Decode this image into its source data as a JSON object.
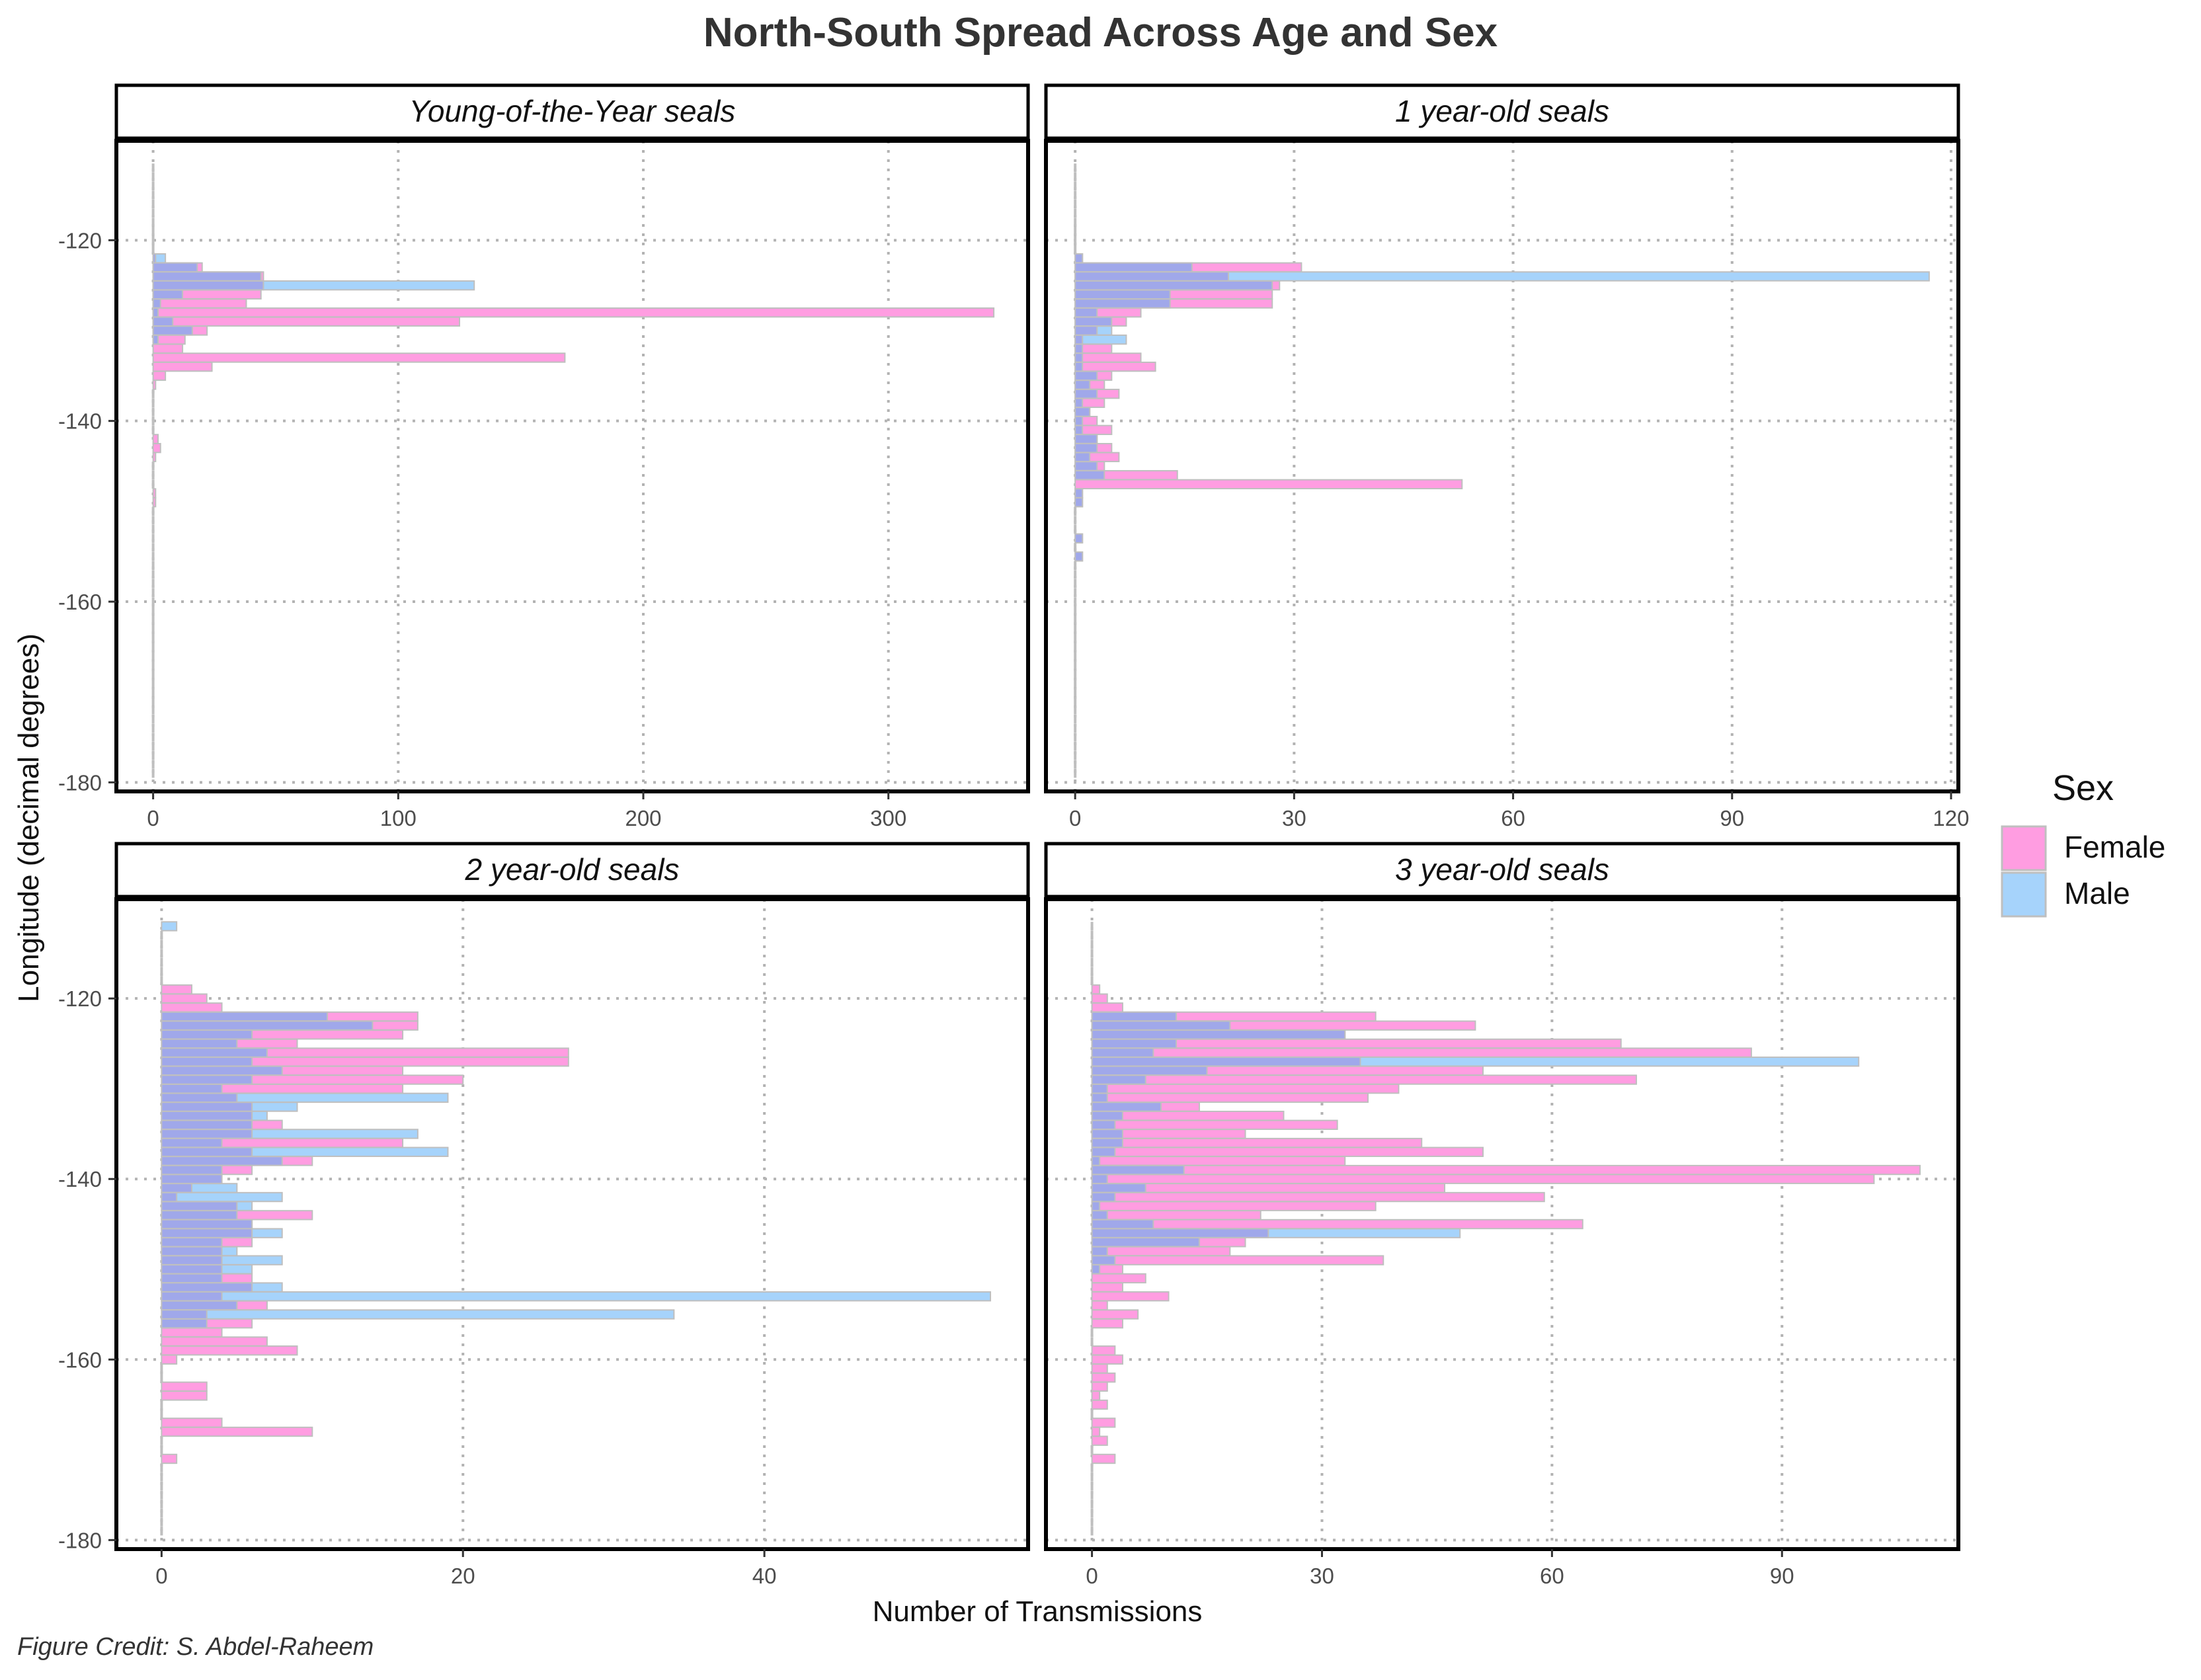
{
  "title": "North-South Spread Across Age and Sex",
  "credit": "Figure Credit: S. Abdel-Raheem",
  "colors": {
    "female": "#ff9de1",
    "male": "#a6d3fb",
    "overlap": "#a0a8ea",
    "edge": "#bfbfbf",
    "grid": "#b3b3b3"
  },
  "chart_data": {
    "type": "bar",
    "orientation": "horizontal",
    "xlabel": "Number of Transmissions",
    "ylabel": "Longitude (decimal degrees)",
    "ylim": [
      -181,
      -109
    ],
    "y_ticks": [
      -120,
      -140,
      -160,
      -180
    ],
    "grid": true,
    "legend": {
      "title": "Sex",
      "position": "right",
      "entries": [
        "Female",
        "Male"
      ]
    },
    "panels": [
      {
        "title": "Young-of-the-Year seals",
        "xlim": [
          -15,
          357
        ],
        "x_ticks": [
          0,
          100,
          200,
          300
        ],
        "lon": [
          -112,
          -113,
          -114,
          -115,
          -116,
          -117,
          -118,
          -119,
          -120,
          -121,
          -122,
          -123,
          -124,
          -125,
          -126,
          -127,
          -128,
          -129,
          -130,
          -131,
          -132,
          -133,
          -134,
          -135,
          -136,
          -137,
          -138,
          -139,
          -140,
          -141,
          -142,
          -143,
          -144,
          -145,
          -146,
          -147,
          -148,
          -149,
          -150,
          -151,
          -152,
          -153,
          -154,
          -155,
          -156,
          -157,
          -158,
          -159,
          -160,
          -161,
          -162,
          -163,
          -164,
          -165,
          -166,
          -167,
          -168,
          -169,
          -170,
          -171,
          -172,
          -173,
          -174,
          -175,
          -176,
          -177,
          -178,
          -179
        ],
        "female": [
          0,
          0,
          0,
          0,
          0,
          0,
          0,
          0,
          0,
          0,
          1,
          20,
          45,
          45,
          44,
          38,
          343,
          125,
          22,
          13,
          12,
          168,
          24,
          5,
          1,
          0,
          0,
          0,
          0,
          0,
          2,
          3,
          1,
          0,
          0,
          0,
          1,
          1,
          0,
          0,
          0,
          0,
          0,
          0,
          0,
          0,
          0,
          0,
          0,
          0,
          0,
          0,
          0,
          0,
          0,
          0,
          0,
          0,
          0,
          0,
          0,
          0,
          0,
          0,
          0,
          0,
          0,
          0
        ],
        "male": [
          0,
          0,
          0,
          0,
          0,
          0,
          0,
          0,
          0,
          0,
          5,
          18,
          44,
          131,
          12,
          3,
          2,
          8,
          16,
          2,
          0,
          0,
          0,
          0,
          0,
          0,
          0,
          0,
          0,
          0,
          0,
          0,
          0,
          0,
          0,
          0,
          0,
          0,
          0,
          0,
          0,
          0,
          0,
          0,
          0,
          0,
          0,
          0,
          0,
          0,
          0,
          0,
          0,
          0,
          0,
          0,
          0,
          0,
          0,
          0,
          0,
          0,
          0,
          0,
          0,
          0,
          0,
          0
        ]
      },
      {
        "title": "1 year-old seals",
        "xlim": [
          -4,
          121
        ],
        "x_ticks": [
          0,
          30,
          60,
          90,
          120
        ],
        "lon": [
          -112,
          -113,
          -114,
          -115,
          -116,
          -117,
          -118,
          -119,
          -120,
          -121,
          -122,
          -123,
          -124,
          -125,
          -126,
          -127,
          -128,
          -129,
          -130,
          -131,
          -132,
          -133,
          -134,
          -135,
          -136,
          -137,
          -138,
          -139,
          -140,
          -141,
          -142,
          -143,
          -144,
          -145,
          -146,
          -147,
          -148,
          -149,
          -150,
          -151,
          -152,
          -153,
          -154,
          -155,
          -156,
          -157,
          -158,
          -159,
          -160,
          -161,
          -162,
          -163,
          -164,
          -165,
          -166,
          -167,
          -168,
          -169,
          -170,
          -171,
          -172,
          -173,
          -174,
          -175,
          -176,
          -177,
          -178,
          -179
        ],
        "female": [
          0,
          0,
          0,
          0,
          0,
          0,
          0,
          0,
          0,
          0,
          1,
          31,
          21,
          28,
          27,
          27,
          9,
          7,
          3,
          1,
          5,
          9,
          11,
          5,
          4,
          6,
          4,
          2,
          3,
          5,
          3,
          5,
          6,
          4,
          14,
          53,
          1,
          1,
          0,
          0,
          0,
          1,
          0,
          1,
          0,
          0,
          0,
          0,
          0,
          0,
          0,
          0,
          0,
          0,
          0,
          0,
          0,
          0,
          0,
          0,
          0,
          0,
          0,
          0,
          0,
          0,
          0,
          0
        ],
        "male": [
          0,
          0,
          0,
          0,
          0,
          0,
          0,
          0,
          0,
          0,
          1,
          16,
          117,
          27,
          13,
          13,
          3,
          5,
          5,
          7,
          1,
          1,
          1,
          3,
          2,
          3,
          1,
          2,
          1,
          1,
          3,
          3,
          2,
          3,
          4,
          0,
          1,
          1,
          0,
          0,
          0,
          1,
          0,
          1,
          0,
          0,
          0,
          0,
          0,
          0,
          0,
          0,
          0,
          0,
          0,
          0,
          0,
          0,
          0,
          0,
          0,
          0,
          0,
          0,
          0,
          0,
          0,
          0
        ]
      },
      {
        "title": "2 year-old seals",
        "xlim": [
          -3,
          57.5
        ],
        "x_ticks": [
          0,
          20,
          40
        ],
        "lon": [
          -112,
          -113,
          -114,
          -115,
          -116,
          -117,
          -118,
          -119,
          -120,
          -121,
          -122,
          -123,
          -124,
          -125,
          -126,
          -127,
          -128,
          -129,
          -130,
          -131,
          -132,
          -133,
          -134,
          -135,
          -136,
          -137,
          -138,
          -139,
          -140,
          -141,
          -142,
          -143,
          -144,
          -145,
          -146,
          -147,
          -148,
          -149,
          -150,
          -151,
          -152,
          -153,
          -154,
          -155,
          -156,
          -157,
          -158,
          -159,
          -160,
          -161,
          -162,
          -163,
          -164,
          -165,
          -166,
          -167,
          -168,
          -169,
          -170,
          -171,
          -172,
          -173,
          -174,
          -175,
          -176,
          -177,
          -178,
          -179
        ],
        "female": [
          0,
          0,
          0,
          0,
          0,
          0,
          0,
          2,
          3,
          4,
          17,
          17,
          16,
          9,
          27,
          27,
          16,
          20,
          16,
          5,
          6,
          6,
          8,
          6,
          16,
          6,
          10,
          6,
          4,
          2,
          1,
          5,
          10,
          6,
          6,
          6,
          4,
          4,
          4,
          6,
          6,
          4,
          7,
          3,
          6,
          4,
          7,
          9,
          1,
          0,
          0,
          3,
          3,
          0,
          0,
          4,
          10,
          0,
          0,
          1,
          0,
          0,
          0,
          0,
          0,
          0,
          0,
          0
        ],
        "male": [
          1,
          0,
          0,
          0,
          0,
          0,
          0,
          0,
          0,
          0,
          11,
          14,
          6,
          5,
          7,
          6,
          8,
          6,
          4,
          19,
          9,
          7,
          6,
          17,
          4,
          19,
          8,
          4,
          4,
          5,
          8,
          6,
          5,
          6,
          8,
          4,
          5,
          8,
          6,
          4,
          8,
          55,
          5,
          34,
          3,
          0,
          0,
          0,
          0,
          0,
          0,
          0,
          0,
          0,
          0,
          0,
          0,
          0,
          0,
          0,
          0,
          0,
          0,
          0,
          0,
          0,
          0,
          0
        ]
      },
      {
        "title": "3 year-old seals",
        "xlim": [
          -6,
          113
        ],
        "x_ticks": [
          0,
          30,
          60,
          90
        ],
        "lon": [
          -112,
          -113,
          -114,
          -115,
          -116,
          -117,
          -118,
          -119,
          -120,
          -121,
          -122,
          -123,
          -124,
          -125,
          -126,
          -127,
          -128,
          -129,
          -130,
          -131,
          -132,
          -133,
          -134,
          -135,
          -136,
          -137,
          -138,
          -139,
          -140,
          -141,
          -142,
          -143,
          -144,
          -145,
          -146,
          -147,
          -148,
          -149,
          -150,
          -151,
          -152,
          -153,
          -154,
          -155,
          -156,
          -157,
          -158,
          -159,
          -160,
          -161,
          -162,
          -163,
          -164,
          -165,
          -166,
          -167,
          -168,
          -169,
          -170,
          -171,
          -172,
          -173,
          -174,
          -175,
          -176,
          -177,
          -178,
          -179
        ],
        "female": [
          0,
          0,
          0,
          0,
          0,
          0,
          0,
          1,
          2,
          4,
          37,
          50,
          33,
          69,
          86,
          35,
          51,
          71,
          40,
          36,
          14,
          25,
          32,
          20,
          43,
          51,
          33,
          108,
          102,
          46,
          59,
          37,
          22,
          64,
          23,
          20,
          18,
          38,
          4,
          7,
          4,
          10,
          2,
          6,
          4,
          0,
          0,
          3,
          4,
          2,
          3,
          2,
          1,
          2,
          0,
          3,
          1,
          2,
          0,
          3,
          0,
          0,
          0,
          0,
          0,
          0,
          0,
          0
        ],
        "male": [
          0,
          0,
          0,
          0,
          0,
          0,
          0,
          0,
          0,
          0,
          11,
          18,
          33,
          11,
          8,
          100,
          15,
          7,
          2,
          2,
          9,
          4,
          3,
          4,
          4,
          3,
          1,
          12,
          2,
          7,
          3,
          1,
          2,
          8,
          48,
          14,
          2,
          3,
          1,
          0,
          0,
          0,
          0,
          0,
          0,
          0,
          0,
          0,
          0,
          0,
          0,
          0,
          0,
          0,
          0,
          0,
          0,
          0,
          0,
          0,
          0,
          0,
          0,
          0,
          0,
          0,
          0,
          0
        ]
      }
    ]
  }
}
